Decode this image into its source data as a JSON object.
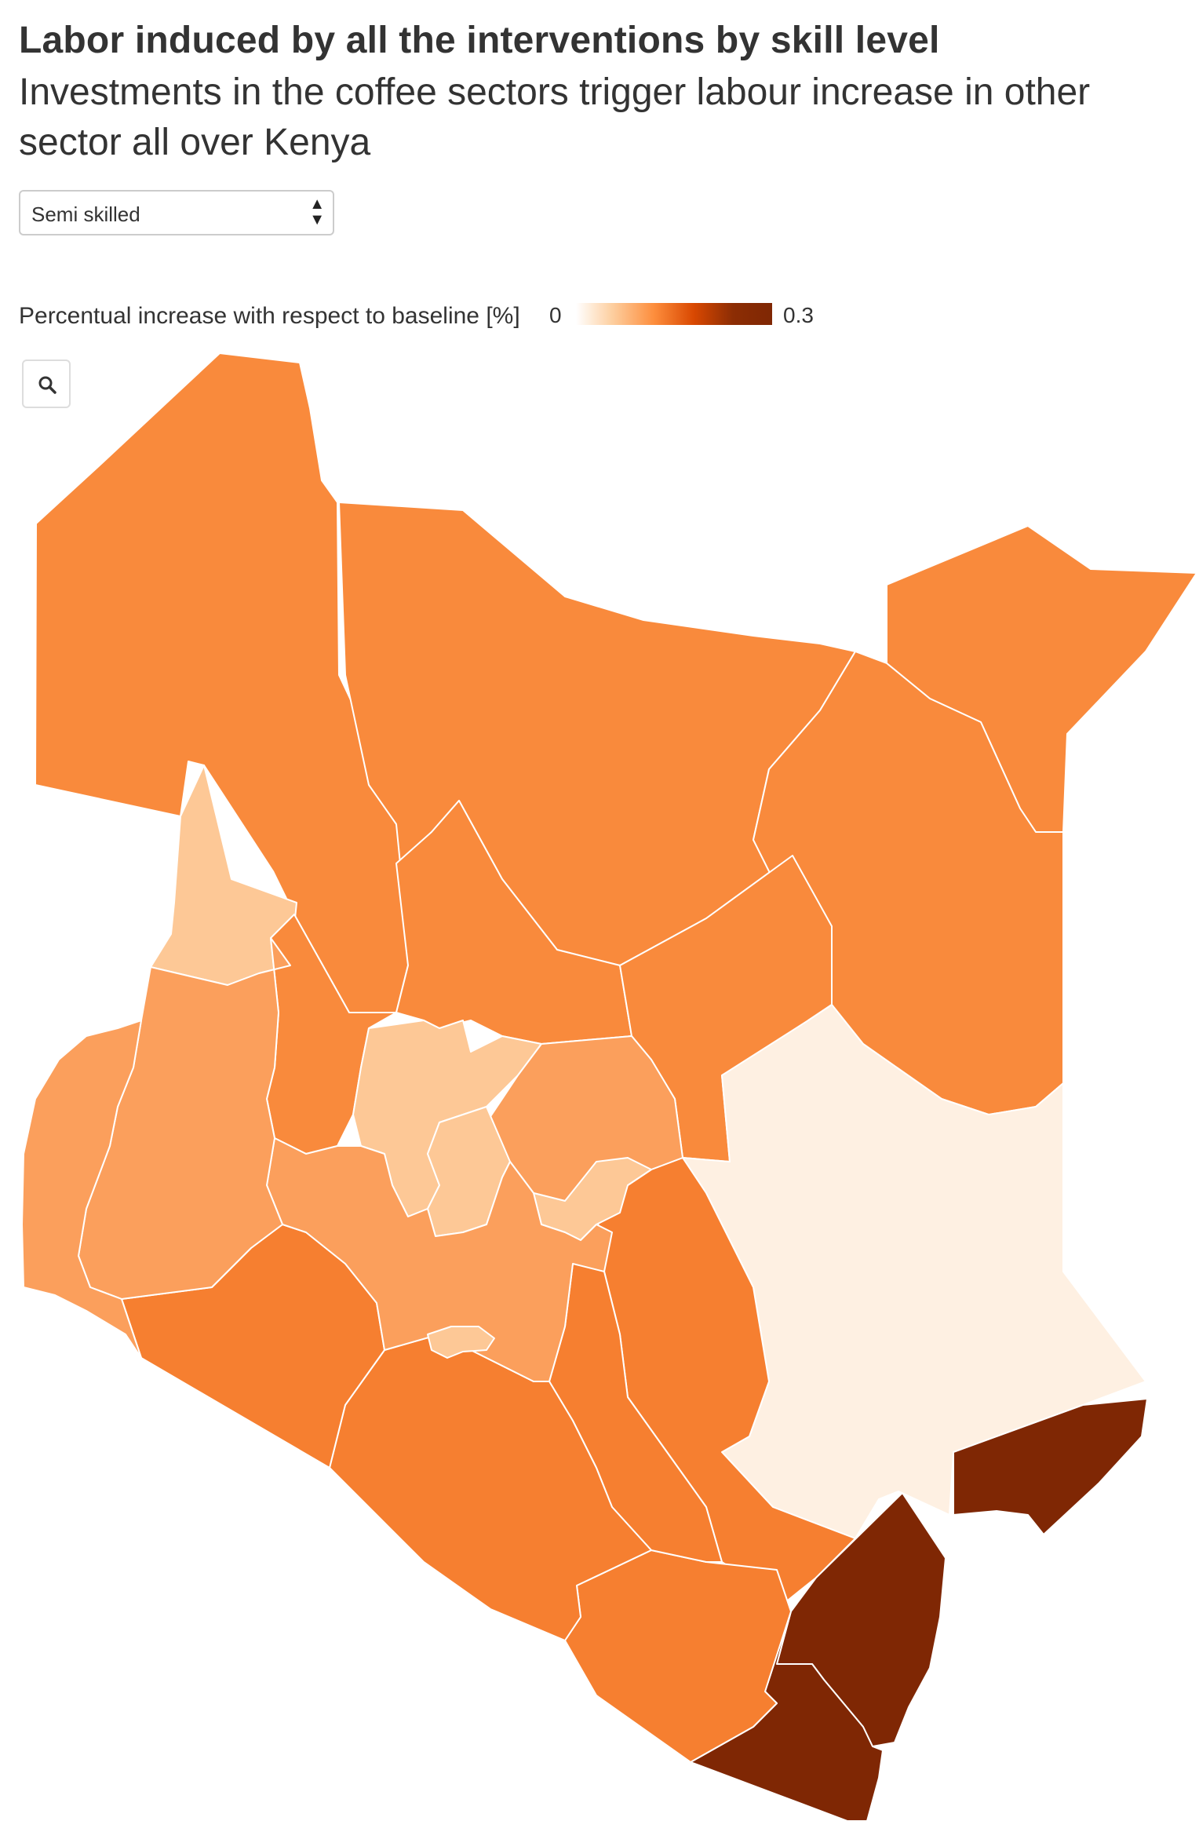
{
  "title": "Labor induced by all the interventions by skill level",
  "subtitle": "Investments in the coffee sectors trigger labour increase in other sector all over Kenya",
  "selector": {
    "selected": "Semi skilled"
  },
  "legend": {
    "title": "Percentual increase with respect to baseline [%]",
    "min_label": "0",
    "max_label": "0.3"
  },
  "zoom": {
    "icon": "search-icon"
  },
  "colors": {
    "very_light": "#fef0e2",
    "light": "#fdc896",
    "light_medium": "#fb9f5c",
    "medium": "#f98a3c",
    "medium_dark": "#f67f30",
    "dark": "#7f2704"
  }
}
